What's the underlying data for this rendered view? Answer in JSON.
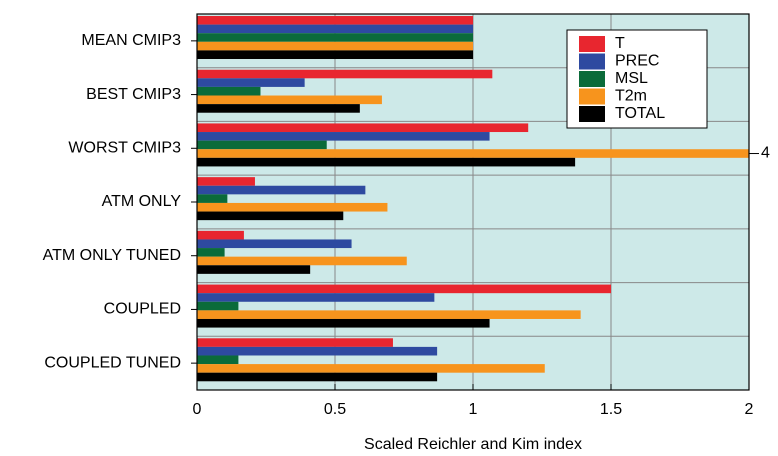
{
  "chart_data": {
    "type": "barh",
    "xlabel": "Scaled Reichler and Kim index",
    "categories": [
      "MEAN CMIP3",
      "BEST CMIP3",
      "WORST CMIP3",
      "ATM ONLY",
      "ATM ONLY TUNED",
      "COUPLED",
      "COUPLED TUNED"
    ],
    "series": [
      {
        "name": "T",
        "color": "#e8262f",
        "values": [
          1,
          1.07,
          1.2,
          0.21,
          0.17,
          1.5,
          0.71
        ]
      },
      {
        "name": "PREC",
        "color": "#2e4aa0",
        "values": [
          1,
          0.39,
          1.06,
          0.61,
          0.56,
          0.86,
          0.87
        ]
      },
      {
        "name": "MSL",
        "color": "#0b6b3a",
        "values": [
          1,
          0.23,
          0.47,
          0.11,
          0.1,
          0.15,
          0.15
        ]
      },
      {
        "name": "T2m",
        "color": "#f7941d",
        "values": [
          1,
          0.67,
          4,
          0.69,
          0.76,
          1.39,
          1.26
        ],
        "value_labels": [
          null,
          null,
          "4",
          null,
          null,
          null,
          null
        ]
      },
      {
        "name": "TOTAL",
        "color": "#000000",
        "values": [
          1,
          0.59,
          1.37,
          0.53,
          0.41,
          1.06,
          0.87
        ]
      }
    ],
    "xlim": [
      0,
      2
    ],
    "xticks": [
      0,
      0.5,
      1,
      1.5,
      2
    ],
    "grid": true,
    "legend": "upper right",
    "background": "#cde9e8"
  }
}
